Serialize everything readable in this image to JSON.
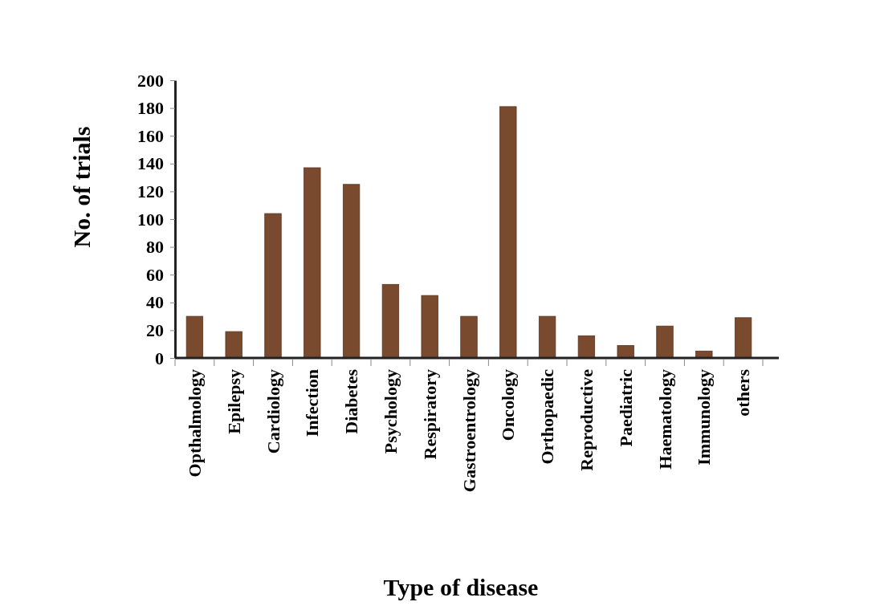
{
  "chart_data": {
    "type": "bar",
    "xlabel": "Type of disease",
    "ylabel": "No. of trials",
    "categories": [
      "Opthalmology",
      "Epilepsy",
      "Cardiology",
      "Infection",
      "Diabetes",
      "Psychology",
      "Respiratory",
      "Gastroentrology",
      "Oncology",
      "Orthopaedic",
      "Reproductive",
      "Paediatric",
      "Haematology",
      "Immunology",
      "others"
    ],
    "values": [
      30,
      19,
      104,
      137,
      125,
      53,
      45,
      30,
      181,
      30,
      16,
      9,
      23,
      5,
      29
    ],
    "color": "#7a4a2e",
    "ylim": [
      0,
      200
    ],
    "yticks": [
      0,
      20,
      40,
      60,
      80,
      100,
      120,
      140,
      160,
      180,
      200
    ],
    "grid": false
  }
}
